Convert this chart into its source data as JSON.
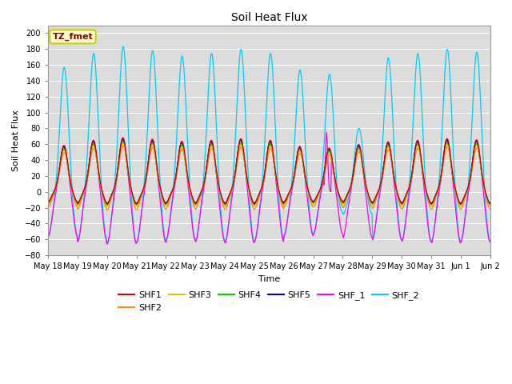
{
  "title": "Soil Heat Flux",
  "xlabel": "Time",
  "ylabel": "Soil Heat Flux",
  "ylim": [
    -80,
    210
  ],
  "yticks": [
    -80,
    -60,
    -40,
    -20,
    0,
    20,
    40,
    60,
    80,
    100,
    120,
    140,
    160,
    180,
    200
  ],
  "annotation_text": "TZ_fmet",
  "annotation_color": "#8B0000",
  "annotation_bg": "#FFFFD0",
  "annotation_border": "#CCCC00",
  "series_colors": {
    "SHF1": "#CC0000",
    "SHF2": "#FF8800",
    "SHF3": "#CCCC00",
    "SHF4": "#00CC00",
    "SHF5": "#0000CC",
    "SHF_1": "#FF00FF",
    "SHF_2": "#00CCFF"
  },
  "n_days": 15,
  "start_day": 18,
  "plot_bg": "#DCDCDC",
  "grid_color": "#FFFFFF",
  "fig_bg": "#FFFFFF"
}
